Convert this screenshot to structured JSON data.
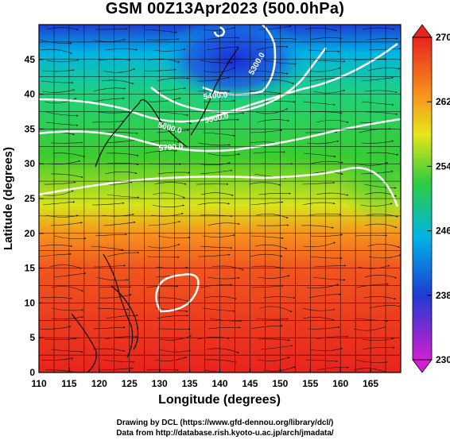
{
  "title": "GSM 00Z13Apr2023 (500.0hPa)",
  "credits": {
    "line1": "Drawing by DCL (https://www.gfd-dennou.org/library/dcl/)",
    "line2": "Data from http://database.rish.kyoto-u.ac.jp/arch/jmadata/"
  },
  "map": {
    "xlabel": "Longitude (degrees)",
    "ylabel": "Latitude  (degrees)",
    "xlim": [
      110,
      170
    ],
    "ylim": [
      0,
      50
    ],
    "xticks": [
      "110",
      "115",
      "120",
      "125",
      "130",
      "135",
      "140",
      "145",
      "150",
      "155",
      "160",
      "165"
    ],
    "yticks": [
      "0",
      "5",
      "10",
      "15",
      "20",
      "25",
      "30",
      "35",
      "40",
      "45"
    ],
    "grid": true,
    "contour_labels": [
      "5300.0",
      "5400.0",
      "5500.0",
      "5600.0",
      "5700.0"
    ],
    "colorbar": {
      "ticks": [
        "270",
        "262",
        "254",
        "246",
        "238",
        "230"
      ],
      "min": 230,
      "max": 270
    }
  },
  "colors": {
    "red": "#e8231e",
    "orange": "#f7941d",
    "yellow": "#e6e619",
    "green": "#2ecc40",
    "cyan": "#00b4e6",
    "blue": "#1e3cd2",
    "magenta": "#d21ed2"
  }
}
